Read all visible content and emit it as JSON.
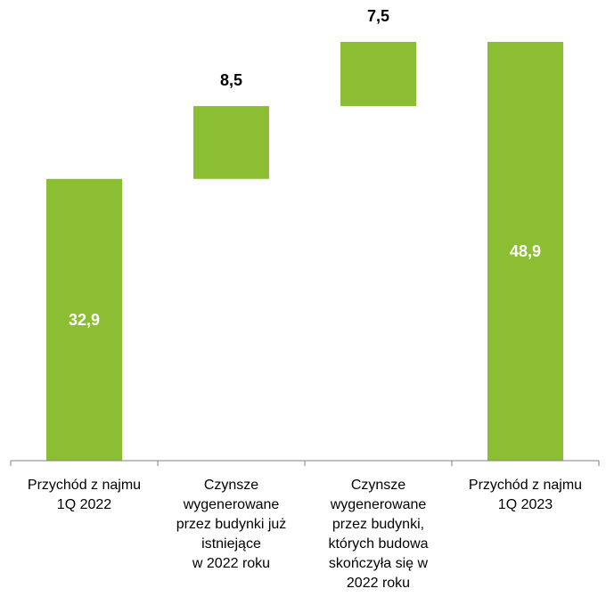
{
  "chart_data": {
    "type": "bar",
    "subtype": "waterfall",
    "categories": [
      "Przychód z najmu 1Q 2022",
      "Czynsze wygenerowane przez budynki już istniejące w 2022 roku",
      "Czynsze wygenerowane przez budynki, których budowa skończyła się w 2022 roku",
      "Przychód z najmu 1Q 2023"
    ],
    "category_lines": [
      [
        "Przychód z najmu",
        "1Q 2022"
      ],
      [
        "Czynsze",
        "wygenerowane",
        "przez budynki już",
        "istniejące",
        "w 2022 roku"
      ],
      [
        "Czynsze",
        "wygenerowane",
        "przez budynki,",
        "których budowa",
        "skończyła się w",
        "2022 roku"
      ],
      [
        "Przychód z najmu",
        "1Q 2023"
      ]
    ],
    "values": [
      32.9,
      8.5,
      7.5,
      48.9
    ],
    "bar_kinds": [
      "total",
      "increment",
      "increment",
      "total"
    ],
    "data_labels": [
      "32,9",
      "8,5",
      "7,5",
      "48,9"
    ],
    "label_positions": [
      "inside",
      "above",
      "above",
      "inside"
    ],
    "ylim": [
      0,
      48.9
    ],
    "bar_color": "#8BBE33",
    "inside_label_color": "#ffffff",
    "outside_label_color": "#000000",
    "title": "",
    "xlabel": "",
    "ylabel": "",
    "grid": false,
    "legend": "none"
  }
}
